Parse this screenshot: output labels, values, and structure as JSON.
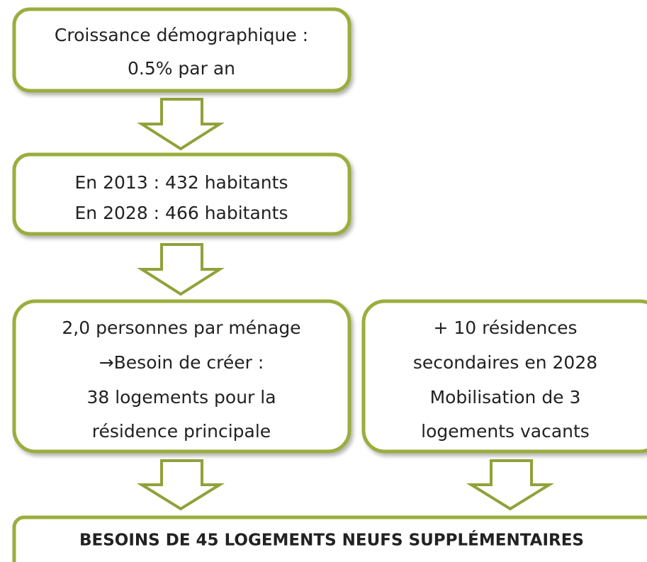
{
  "nodes": [
    {
      "lines": [
        "Croissance démographique :",
        "0.5% par an"
      ]
    },
    {
      "lines": [
        "En 2013 : 432 habitants",
        "En 2028 : 466 habitants"
      ]
    },
    {
      "lines": [
        "2,0 personnes par ménage",
        "→Besoin de créer :",
        "38 logements pour la",
        "résidence principale"
      ]
    },
    {
      "lines": [
        "+ 10 résidences",
        "secondaires en 2028",
        "Mobilisation de 3",
        "logements vacants"
      ]
    },
    {
      "lines": [
        "BESOINS DE 45 LOGEMENTS NEUFS SUPPLÉMENTAIRES"
      ]
    }
  ]
}
